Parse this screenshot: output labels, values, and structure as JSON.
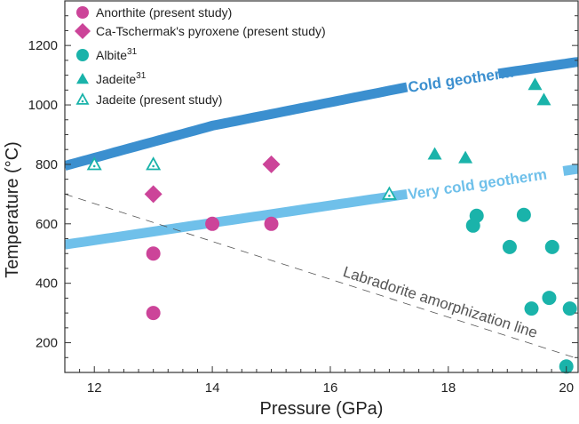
{
  "chart_data": {
    "type": "scatter",
    "xlabel": "Pressure (GPa)",
    "ylabel": "Temperature (°C)",
    "xlim": [
      11.5,
      20.2
    ],
    "ylim": [
      100,
      1350
    ],
    "xticks": [
      12,
      14,
      16,
      18,
      20
    ],
    "yticks": [
      200,
      400,
      600,
      800,
      1000,
      1200
    ],
    "grid": false,
    "legend_position": "top-left",
    "colors": {
      "magenta": "#cc4499",
      "teal": "#1ab3aa",
      "cold": "#3b8fcf",
      "very_cold": "#6fc0ea",
      "dash": "#555555"
    },
    "series": [
      {
        "name": "Anorthite (present study)",
        "sup": "",
        "marker": "circle",
        "color": "#cc4499",
        "points": [
          [
            13,
            300
          ],
          [
            13,
            500
          ],
          [
            14,
            600
          ],
          [
            15,
            600
          ]
        ]
      },
      {
        "name": "Ca-Tschermak's pyroxene (present study)",
        "sup": "",
        "marker": "diamond",
        "color": "#cc4499",
        "points": [
          [
            13,
            700
          ],
          [
            15,
            800
          ]
        ]
      },
      {
        "name": "Albite",
        "sup": "31",
        "marker": "circle",
        "color": "#1ab3aa",
        "points": [
          [
            18.42,
            594
          ],
          [
            18.48,
            627
          ],
          [
            19.04,
            522
          ],
          [
            19.28,
            630
          ],
          [
            19.41,
            315
          ],
          [
            19.71,
            351
          ],
          [
            19.76,
            522
          ],
          [
            20.06,
            315
          ],
          [
            20.0,
            120
          ]
        ]
      },
      {
        "name": "Jadeite",
        "sup": "31",
        "marker": "triangle",
        "color": "#1ab3aa",
        "points": [
          [
            17.77,
            834
          ],
          [
            18.29,
            822
          ],
          [
            19.47,
            1068
          ],
          [
            19.62,
            1017
          ]
        ]
      },
      {
        "name": "Jadeite (present study)",
        "sup": "",
        "marker": "open-triangle",
        "color": "#1ab3aa",
        "points": [
          [
            12,
            800
          ],
          [
            13,
            800
          ],
          [
            17,
            700
          ]
        ]
      }
    ],
    "lines": [
      {
        "name": "Cold geotherm",
        "color": "#3b8fcf",
        "points": [
          [
            11.5,
            795
          ],
          [
            14,
            930
          ],
          [
            17.3,
            1060
          ],
          [
            20.2,
            1145
          ]
        ],
        "label_at": [
          17.3,
          18.8
        ]
      },
      {
        "name": "Very cold geotherm",
        "color": "#6fc0ea",
        "points": [
          [
            11.5,
            530
          ],
          [
            20.2,
            785
          ]
        ],
        "label_at": [
          17.3,
          19.9
        ]
      },
      {
        "name": "Labradorite amorphization line",
        "color": "#555555",
        "dashed": true,
        "points": [
          [
            11.5,
            700
          ],
          [
            20.2,
            146
          ]
        ]
      }
    ]
  }
}
